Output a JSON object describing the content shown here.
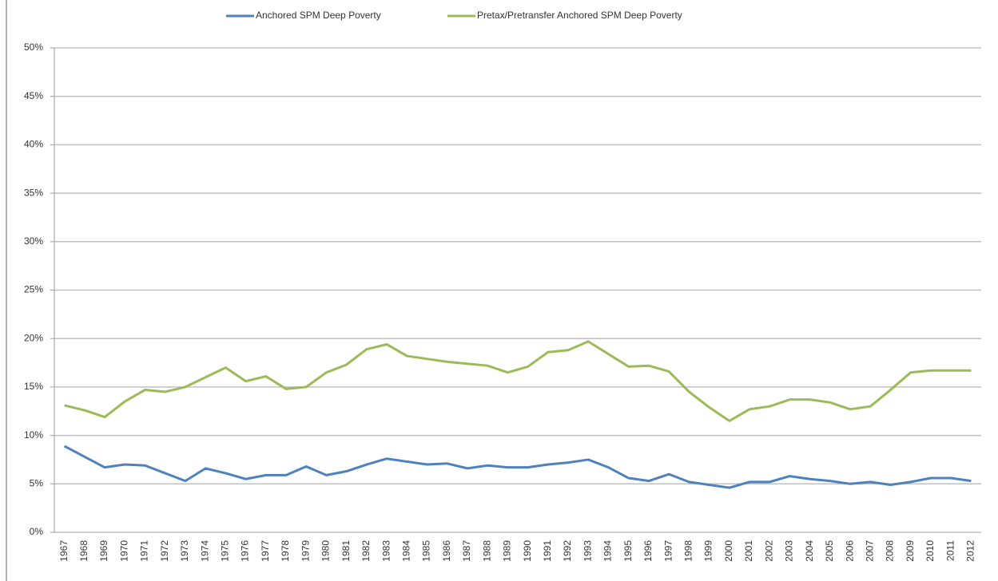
{
  "chart_data": {
    "type": "line",
    "categories": [
      "1967",
      "1968",
      "1969",
      "1970",
      "1971",
      "1972",
      "1973",
      "1974",
      "1975",
      "1976",
      "1977",
      "1978",
      "1979",
      "1980",
      "1981",
      "1982",
      "1983",
      "1984",
      "1985",
      "1986",
      "1987",
      "1988",
      "1989",
      "1990",
      "1991",
      "1992",
      "1993",
      "1994",
      "1995",
      "1996",
      "1997",
      "1998",
      "1999",
      "2000",
      "2001",
      "2002",
      "2003",
      "2004",
      "2005",
      "2006",
      "2007",
      "2008",
      "2009",
      "2010",
      "2011",
      "2012"
    ],
    "series": [
      {
        "name": "Anchored SPM Deep Poverty",
        "color": "#4f81bd",
        "values": [
          8.9,
          7.8,
          6.7,
          7.0,
          6.9,
          6.1,
          5.3,
          6.6,
          6.1,
          5.5,
          5.9,
          5.9,
          6.8,
          5.9,
          6.3,
          7.0,
          7.6,
          7.3,
          7.0,
          7.1,
          6.6,
          6.9,
          6.7,
          6.7,
          7.0,
          7.2,
          7.5,
          6.7,
          5.6,
          5.3,
          6.0,
          5.2,
          4.9,
          4.6,
          5.2,
          5.2,
          5.8,
          5.5,
          5.3,
          5.0,
          5.2,
          4.9,
          5.2,
          5.6,
          5.6,
          5.3
        ]
      },
      {
        "name": "Pretax/Pretransfer Anchored SPM Deep Poverty",
        "color": "#9bbb59",
        "values": [
          13.1,
          12.6,
          11.9,
          13.5,
          14.7,
          14.5,
          15.0,
          16.0,
          17.0,
          15.6,
          16.1,
          14.8,
          15.0,
          16.5,
          17.3,
          18.9,
          19.4,
          18.2,
          17.9,
          17.6,
          17.4,
          17.2,
          16.5,
          17.1,
          18.6,
          18.8,
          19.7,
          18.4,
          17.1,
          17.2,
          16.6,
          14.5,
          12.9,
          11.5,
          12.7,
          13.0,
          13.7,
          13.7,
          13.4,
          12.7,
          13.0,
          14.7,
          16.5,
          16.7,
          16.7,
          16.7
        ]
      }
    ],
    "ylim": [
      0,
      50
    ],
    "yticks": [
      {
        "value": 0,
        "label": "0%"
      },
      {
        "value": 5,
        "label": "5%"
      },
      {
        "value": 10,
        "label": "10%"
      },
      {
        "value": 15,
        "label": "15%"
      },
      {
        "value": 20,
        "label": "20%"
      },
      {
        "value": 25,
        "label": "25%"
      },
      {
        "value": 30,
        "label": "30%"
      },
      {
        "value": 35,
        "label": "35%"
      },
      {
        "value": 40,
        "label": "40%"
      },
      {
        "value": 45,
        "label": "45%"
      },
      {
        "value": 50,
        "label": "50%"
      }
    ],
    "grid": true,
    "legend": "top"
  }
}
